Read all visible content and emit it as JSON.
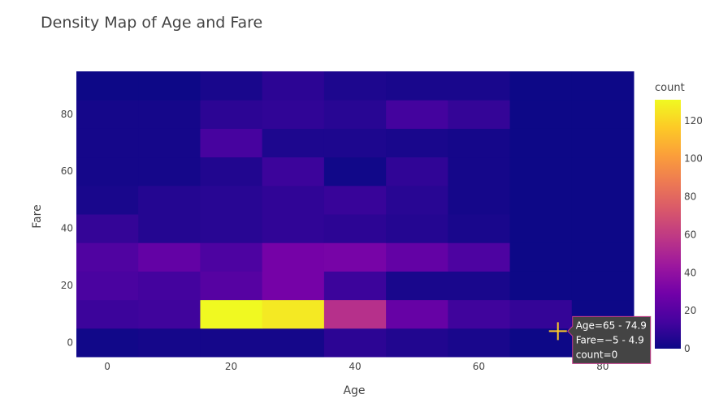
{
  "chart_data": {
    "type": "heatmap",
    "title": "Density Map of Age and Fare",
    "xlabel": "Age",
    "ylabel": "Fare",
    "xlim": [
      -5,
      85
    ],
    "ylim": [
      -5,
      95
    ],
    "x_ticks": [
      0,
      20,
      40,
      60,
      80
    ],
    "y_ticks": [
      0,
      20,
      40,
      60,
      80
    ],
    "x_tick_labels": [
      "0",
      "20",
      "40",
      "60",
      "80"
    ],
    "y_tick_labels": [
      "0",
      "20",
      "40",
      "60",
      "80"
    ],
    "x_bin_starts": [
      -5,
      5,
      15,
      25,
      35,
      45,
      55,
      65,
      75
    ],
    "y_bin_starts": [
      -5,
      5,
      15,
      25,
      35,
      45,
      55,
      65,
      75,
      85
    ],
    "bin_size": 10,
    "z": [
      [
        1,
        2,
        2,
        2,
        8,
        5,
        3,
        0,
        0
      ],
      [
        12,
        13,
        131,
        126,
        55,
        25,
        13,
        10,
        0
      ],
      [
        16,
        14,
        20,
        30,
        12,
        3,
        3,
        0,
        0
      ],
      [
        18,
        24,
        17,
        30,
        31,
        24,
        17,
        0,
        0
      ],
      [
        10,
        6,
        7,
        9,
        8,
        6,
        3,
        0,
        0
      ],
      [
        3,
        6,
        7,
        9,
        11,
        7,
        2,
        0,
        0
      ],
      [
        2,
        2,
        5,
        12,
        1,
        9,
        2,
        0,
        0
      ],
      [
        2,
        2,
        15,
        4,
        4,
        3,
        2,
        0,
        0
      ],
      [
        2,
        2,
        8,
        9,
        7,
        14,
        10,
        0,
        0
      ],
      [
        0,
        0,
        3,
        8,
        4,
        3,
        3,
        0,
        0
      ]
    ],
    "colorscale": [
      "#0d0887",
      "#46039f",
      "#7201a8",
      "#9c179e",
      "#bd3786",
      "#d8576b",
      "#ed7953",
      "#fb9f3a",
      "#fdca26",
      "#f0f921"
    ],
    "zmin": 0,
    "zmax": 131,
    "colorbar": {
      "title": "count",
      "ticks": [
        0,
        20,
        40,
        60,
        80,
        100,
        120
      ],
      "tick_labels": [
        "0",
        "20",
        "40",
        "60",
        "80",
        "100",
        "120"
      ]
    },
    "hover": {
      "lines": [
        "Age=65 - 74.9",
        "Fare=−5 - 4.9",
        "count=0"
      ],
      "x": 72.5,
      "y": 0,
      "bg": "#444444",
      "border": "#c83c8c"
    },
    "grid": false,
    "legend": "none"
  }
}
